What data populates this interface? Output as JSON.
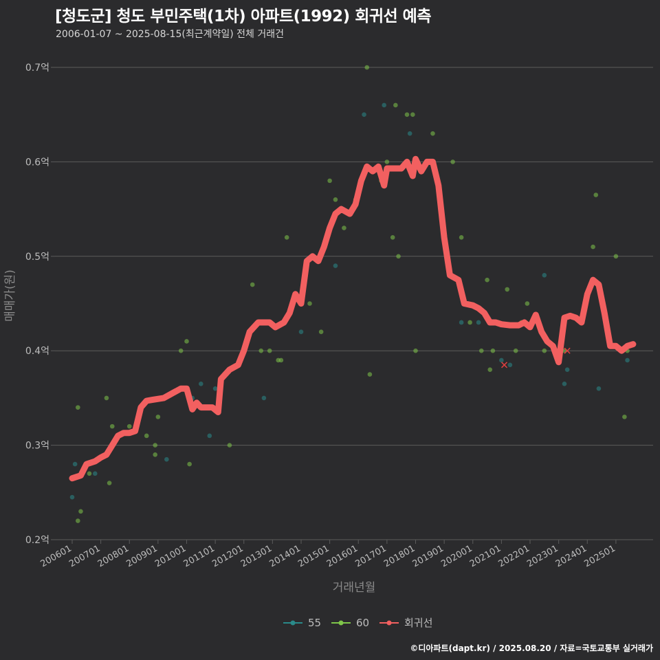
{
  "chart_data": {
    "type": "scatter+line",
    "title": "[청도군] 청도 부민주택(1차) 아파트(1992) 회귀선 예측",
    "subtitle": "2006-01-07 ~ 2025-08-15(최근계약일) 전체 거래건",
    "xlabel": "거래년월",
    "ylabel": "매매가(원)",
    "ylim": [
      0.2,
      0.7
    ],
    "yticks": [
      {
        "value": 0.2,
        "label": "0.2억"
      },
      {
        "value": 0.3,
        "label": "0.3억"
      },
      {
        "value": 0.4,
        "label": "0.4억"
      },
      {
        "value": 0.5,
        "label": "0.5억"
      },
      {
        "value": 0.6,
        "label": "0.6억"
      },
      {
        "value": 0.7,
        "label": "0.7억"
      }
    ],
    "xlim": [
      2005.4,
      2026.3
    ],
    "xticks": [
      {
        "value": 2006.0,
        "label": "200601"
      },
      {
        "value": 2007.0,
        "label": "200701"
      },
      {
        "value": 2008.0,
        "label": "200801"
      },
      {
        "value": 2009.0,
        "label": "200901"
      },
      {
        "value": 2010.0,
        "label": "201001"
      },
      {
        "value": 2011.0,
        "label": "201101"
      },
      {
        "value": 2012.0,
        "label": "201201"
      },
      {
        "value": 2013.0,
        "label": "201301"
      },
      {
        "value": 2014.0,
        "label": "201401"
      },
      {
        "value": 2015.0,
        "label": "201501"
      },
      {
        "value": 2016.0,
        "label": "201601"
      },
      {
        "value": 2017.0,
        "label": "201701"
      },
      {
        "value": 2018.0,
        "label": "201801"
      },
      {
        "value": 2019.0,
        "label": "201901"
      },
      {
        "value": 2020.0,
        "label": "202001"
      },
      {
        "value": 2021.0,
        "label": "202101"
      },
      {
        "value": 2022.0,
        "label": "202201"
      },
      {
        "value": 2023.0,
        "label": "202301"
      },
      {
        "value": 2024.0,
        "label": "202401"
      },
      {
        "value": 2025.0,
        "label": "202501"
      }
    ],
    "series": [
      {
        "name": "55",
        "kind": "scatter",
        "color": "#2a8a8a",
        "points": [
          [
            2006.0,
            0.245
          ],
          [
            2006.1,
            0.28
          ],
          [
            2006.8,
            0.27
          ],
          [
            2009.3,
            0.285
          ],
          [
            2010.2,
            0.35
          ],
          [
            2010.5,
            0.365
          ],
          [
            2010.8,
            0.31
          ],
          [
            2011.0,
            0.36
          ],
          [
            2012.7,
            0.35
          ],
          [
            2014.0,
            0.42
          ],
          [
            2015.2,
            0.49
          ],
          [
            2016.2,
            0.65
          ],
          [
            2016.9,
            0.66
          ],
          [
            2017.8,
            0.63
          ],
          [
            2019.6,
            0.43
          ],
          [
            2020.2,
            0.43
          ],
          [
            2021.0,
            0.39
          ],
          [
            2021.3,
            0.385
          ],
          [
            2022.5,
            0.48
          ],
          [
            2023.2,
            0.365
          ],
          [
            2023.3,
            0.38
          ],
          [
            2024.4,
            0.36
          ],
          [
            2025.4,
            0.39
          ]
        ]
      },
      {
        "name": "60",
        "kind": "scatter",
        "color": "#7fc64a",
        "points": [
          [
            2006.2,
            0.34
          ],
          [
            2006.2,
            0.22
          ],
          [
            2006.3,
            0.23
          ],
          [
            2006.6,
            0.27
          ],
          [
            2007.2,
            0.35
          ],
          [
            2007.3,
            0.26
          ],
          [
            2007.4,
            0.32
          ],
          [
            2008.0,
            0.32
          ],
          [
            2008.6,
            0.31
          ],
          [
            2008.9,
            0.29
          ],
          [
            2008.9,
            0.3
          ],
          [
            2009.0,
            0.33
          ],
          [
            2009.8,
            0.4
          ],
          [
            2010.0,
            0.41
          ],
          [
            2010.1,
            0.28
          ],
          [
            2011.5,
            0.3
          ],
          [
            2012.3,
            0.47
          ],
          [
            2012.6,
            0.4
          ],
          [
            2012.9,
            0.4
          ],
          [
            2013.2,
            0.39
          ],
          [
            2013.3,
            0.39
          ],
          [
            2013.5,
            0.52
          ],
          [
            2014.3,
            0.45
          ],
          [
            2014.7,
            0.42
          ],
          [
            2015.0,
            0.58
          ],
          [
            2015.2,
            0.56
          ],
          [
            2015.5,
            0.53
          ],
          [
            2015.9,
            0.56
          ],
          [
            2016.3,
            0.7
          ],
          [
            2016.4,
            0.375
          ],
          [
            2016.8,
            0.58
          ],
          [
            2017.0,
            0.6
          ],
          [
            2017.2,
            0.52
          ],
          [
            2017.3,
            0.66
          ],
          [
            2017.4,
            0.5
          ],
          [
            2017.7,
            0.65
          ],
          [
            2017.9,
            0.65
          ],
          [
            2018.0,
            0.4
          ],
          [
            2018.6,
            0.63
          ],
          [
            2019.3,
            0.6
          ],
          [
            2019.6,
            0.52
          ],
          [
            2019.9,
            0.43
          ],
          [
            2020.3,
            0.4
          ],
          [
            2020.5,
            0.475
          ],
          [
            2020.6,
            0.38
          ],
          [
            2020.7,
            0.4
          ],
          [
            2020.9,
            0.43
          ],
          [
            2021.2,
            0.465
          ],
          [
            2021.5,
            0.4
          ],
          [
            2021.7,
            0.43
          ],
          [
            2021.9,
            0.45
          ],
          [
            2022.5,
            0.4
          ],
          [
            2023.2,
            0.4
          ],
          [
            2024.2,
            0.51
          ],
          [
            2024.3,
            0.565
          ],
          [
            2025.0,
            0.5
          ],
          [
            2025.3,
            0.33
          ],
          [
            2025.4,
            0.4
          ]
        ]
      },
      {
        "name": "회귀선",
        "kind": "line",
        "color": "#f26060",
        "points": [
          [
            2006.0,
            0.265
          ],
          [
            2006.3,
            0.268
          ],
          [
            2006.5,
            0.28
          ],
          [
            2006.8,
            0.283
          ],
          [
            2007.0,
            0.287
          ],
          [
            2007.2,
            0.29
          ],
          [
            2007.4,
            0.3
          ],
          [
            2007.6,
            0.31
          ],
          [
            2007.8,
            0.313
          ],
          [
            2008.0,
            0.313
          ],
          [
            2008.2,
            0.315
          ],
          [
            2008.4,
            0.34
          ],
          [
            2008.6,
            0.347
          ],
          [
            2008.8,
            0.348
          ],
          [
            2009.2,
            0.35
          ],
          [
            2009.5,
            0.355
          ],
          [
            2009.8,
            0.36
          ],
          [
            2010.0,
            0.36
          ],
          [
            2010.2,
            0.338
          ],
          [
            2010.35,
            0.345
          ],
          [
            2010.5,
            0.34
          ],
          [
            2010.9,
            0.34
          ],
          [
            2011.1,
            0.335
          ],
          [
            2011.2,
            0.37
          ],
          [
            2011.5,
            0.38
          ],
          [
            2011.8,
            0.385
          ],
          [
            2012.0,
            0.4
          ],
          [
            2012.2,
            0.42
          ],
          [
            2012.5,
            0.43
          ],
          [
            2012.9,
            0.43
          ],
          [
            2013.1,
            0.425
          ],
          [
            2013.4,
            0.43
          ],
          [
            2013.6,
            0.44
          ],
          [
            2013.8,
            0.46
          ],
          [
            2014.0,
            0.45
          ],
          [
            2014.2,
            0.495
          ],
          [
            2014.4,
            0.5
          ],
          [
            2014.6,
            0.495
          ],
          [
            2014.8,
            0.51
          ],
          [
            2015.0,
            0.53
          ],
          [
            2015.2,
            0.545
          ],
          [
            2015.4,
            0.55
          ],
          [
            2015.7,
            0.545
          ],
          [
            2015.9,
            0.555
          ],
          [
            2016.1,
            0.58
          ],
          [
            2016.3,
            0.595
          ],
          [
            2016.5,
            0.59
          ],
          [
            2016.7,
            0.595
          ],
          [
            2016.9,
            0.575
          ],
          [
            2017.0,
            0.593
          ],
          [
            2017.3,
            0.593
          ],
          [
            2017.5,
            0.593
          ],
          [
            2017.7,
            0.6
          ],
          [
            2017.9,
            0.585
          ],
          [
            2018.0,
            0.603
          ],
          [
            2018.2,
            0.59
          ],
          [
            2018.4,
            0.6
          ],
          [
            2018.6,
            0.6
          ],
          [
            2018.8,
            0.575
          ],
          [
            2019.0,
            0.52
          ],
          [
            2019.2,
            0.48
          ],
          [
            2019.5,
            0.475
          ],
          [
            2019.7,
            0.45
          ],
          [
            2020.0,
            0.448
          ],
          [
            2020.2,
            0.445
          ],
          [
            2020.4,
            0.44
          ],
          [
            2020.6,
            0.43
          ],
          [
            2020.8,
            0.43
          ],
          [
            2021.0,
            0.428
          ],
          [
            2021.3,
            0.427
          ],
          [
            2021.6,
            0.427
          ],
          [
            2021.8,
            0.43
          ],
          [
            2022.0,
            0.425
          ],
          [
            2022.2,
            0.438
          ],
          [
            2022.4,
            0.42
          ],
          [
            2022.6,
            0.41
          ],
          [
            2022.8,
            0.405
          ],
          [
            2023.0,
            0.388
          ],
          [
            2023.2,
            0.435
          ],
          [
            2023.4,
            0.437
          ],
          [
            2023.6,
            0.435
          ],
          [
            2023.8,
            0.43
          ],
          [
            2024.0,
            0.46
          ],
          [
            2024.2,
            0.475
          ],
          [
            2024.4,
            0.47
          ],
          [
            2024.6,
            0.44
          ],
          [
            2024.8,
            0.405
          ],
          [
            2025.0,
            0.405
          ],
          [
            2025.2,
            0.4
          ],
          [
            2025.4,
            0.405
          ],
          [
            2025.6,
            0.407
          ]
        ]
      }
    ],
    "x_marks": [
      [
        2021.1,
        0.385
      ],
      [
        2023.3,
        0.4
      ]
    ],
    "legend": {
      "position": "bottom",
      "entries": [
        "55",
        "60",
        "회귀선"
      ]
    },
    "caption": "©디아파트(dapt.kr) / 2025.08.20 / 자료=국토교통부 실거래가"
  }
}
